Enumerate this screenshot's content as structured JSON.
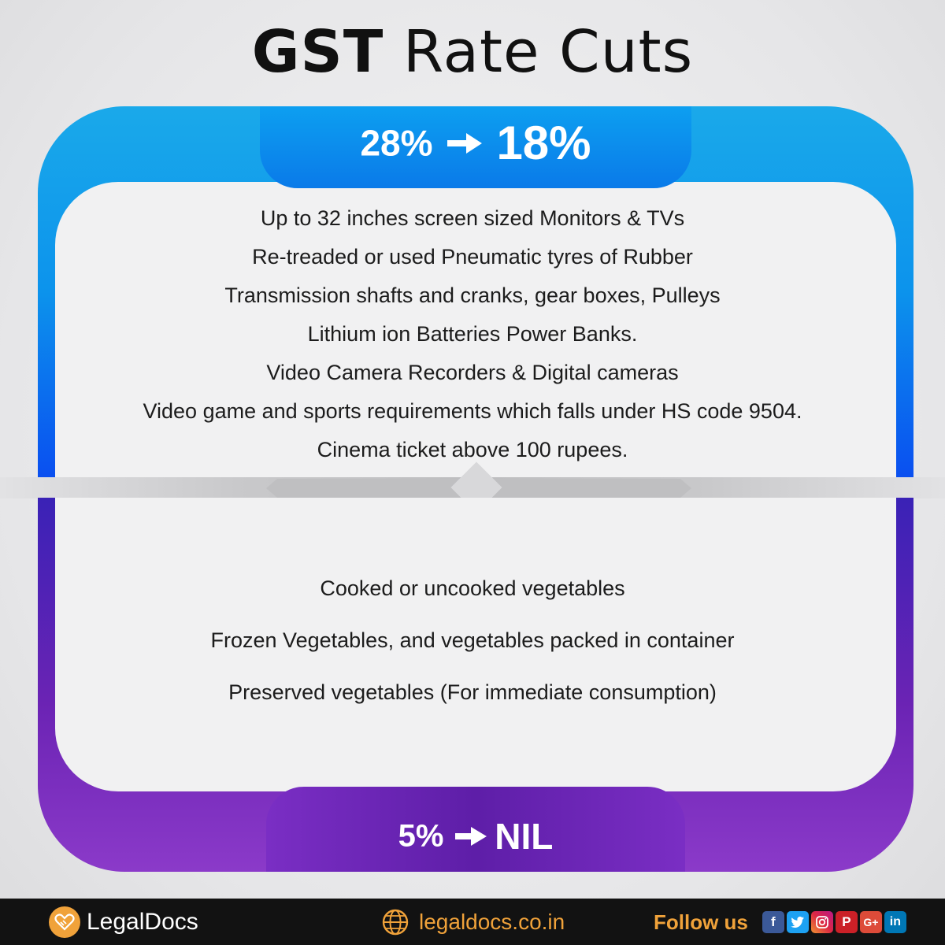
{
  "title": {
    "bold": "GST",
    "light": "Rate Cuts"
  },
  "section_top": {
    "from_rate": "28%",
    "to_rate": "18%",
    "items": [
      "Up to 32 inches screen sized Monitors & TVs",
      "Re-treaded or used Pneumatic tyres of Rubber",
      "Transmission shafts and cranks, gear boxes, Pulleys",
      "Lithium ion Batteries Power Banks.",
      "Video Camera Recorders & Digital cameras",
      "Video game and sports requirements which falls under HS code 9504.",
      "Cinema ticket above 100 rupees."
    ],
    "colors": {
      "frame_top": "#1aa9ea",
      "frame_bottom": "#0a4ff0"
    }
  },
  "section_bottom": {
    "from_rate": "5%",
    "to_rate": "NIL",
    "items": [
      "Cooked or uncooked vegetables",
      "Frozen Vegetables, and vegetables packed in container",
      "Preserved vegetables (For immediate consumption)"
    ],
    "colors": {
      "frame_top": "#3a22b6",
      "frame_bottom": "#8b3ac9"
    }
  },
  "footer": {
    "brand": "LegalDocs",
    "brand_icon": "handshake-icon",
    "website": "legaldocs.co.in",
    "website_icon": "globe-icon",
    "follow_label": "Follow us",
    "social": [
      {
        "name": "facebook-icon",
        "glyph": "f",
        "color": "#3b5998"
      },
      {
        "name": "twitter-icon",
        "glyph": "t",
        "color": "#1da1f2"
      },
      {
        "name": "instagram-icon",
        "glyph": "◎",
        "color": "#d6249f"
      },
      {
        "name": "pinterest-icon",
        "glyph": "P",
        "color": "#cb2027"
      },
      {
        "name": "google-plus-icon",
        "glyph": "G+",
        "color": "#dd4b39"
      },
      {
        "name": "linkedin-icon",
        "glyph": "in",
        "color": "#0077b5"
      }
    ],
    "accent": "#f0a23a"
  }
}
